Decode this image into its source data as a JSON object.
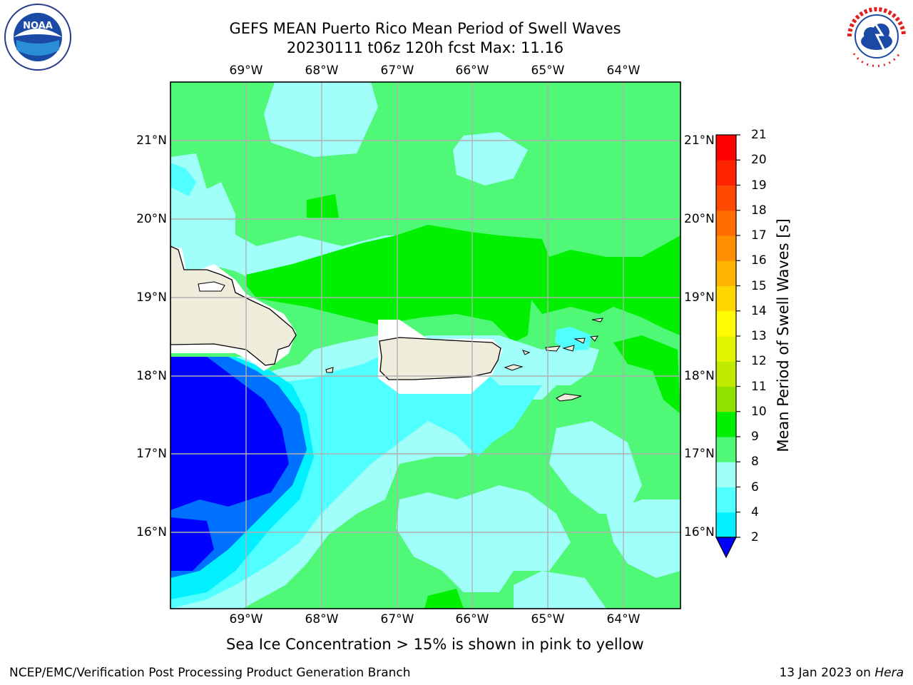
{
  "title": {
    "line1": "GEFS MEAN Puerto Rico Mean Period of Swell Waves",
    "line2": "20230111 t06z 120h fcst   Max: 11.16"
  },
  "map": {
    "lon_labels": [
      "69°W",
      "68°W",
      "67°W",
      "66°W",
      "65°W",
      "64°W"
    ],
    "lat_labels": [
      "21°N",
      "20°N",
      "19°N",
      "18°N",
      "17°N",
      "16°N"
    ],
    "land_color": "#efecdc",
    "grid_color": "#b0b0b0"
  },
  "colorbar": {
    "label": "Mean Period of Swell Waves [s]",
    "ticks": [
      "21",
      "20",
      "19",
      "18",
      "17",
      "16",
      "15",
      "14",
      "13",
      "12",
      "11",
      "10",
      "9",
      "8",
      "6",
      "4",
      "2"
    ],
    "colors": [
      "#ff0000",
      "#ff2400",
      "#ff4800",
      "#ff6c00",
      "#ff8f00",
      "#ffb400",
      "#ffd700",
      "#fffb00",
      "#e1f500",
      "#c0ea00",
      "#90e000",
      "#00f000",
      "#50f878",
      "#a0fff8",
      "#50ffff",
      "#00f0ff",
      "#0070ff",
      "#0000ff"
    ]
  },
  "ice_note": "Sea Ice Concentration > 15% is shown in pink to yellow",
  "footer": {
    "left": "NCEP/EMC/Verification Post Processing Product Generation Branch",
    "right_prefix": "13 Jan 2023 on ",
    "right_host": "Hera"
  },
  "logos": {
    "left": "noaa-logo",
    "left_text": "NOAA",
    "right": "nws-logo",
    "right_text": "NATIONAL WEATHER SERVICE"
  }
}
